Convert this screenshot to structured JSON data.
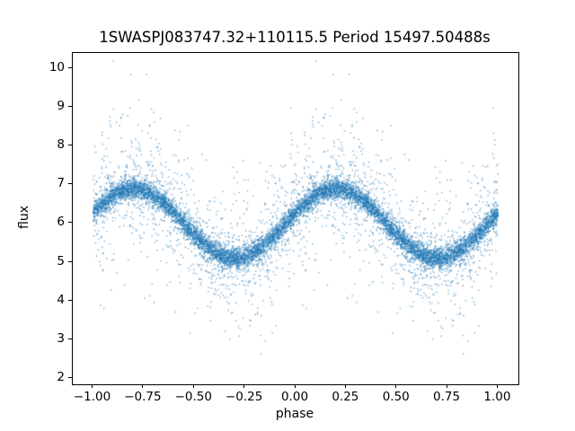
{
  "chart_data": {
    "type": "scatter",
    "title": "1SWASPJ083747.32+110115.5 Period 15497.50488s",
    "xlabel": "phase",
    "ylabel": "flux",
    "xlim": [
      -1.1,
      1.1
    ],
    "ylim": [
      1.85,
      10.4
    ],
    "x_ticks": [
      -1.0,
      -0.75,
      -0.5,
      -0.25,
      0.0,
      0.25,
      0.5,
      0.75,
      1.0
    ],
    "x_tick_labels": [
      "−1.00",
      "−0.75",
      "−0.50",
      "−0.25",
      "0.00",
      "0.25",
      "0.50",
      "0.75",
      "1.00"
    ],
    "y_ticks": [
      2,
      3,
      4,
      5,
      6,
      7,
      8,
      9,
      10
    ],
    "y_tick_labels": [
      "2",
      "3",
      "4",
      "5",
      "6",
      "7",
      "8",
      "9",
      "10"
    ],
    "grid": false,
    "legend": null,
    "marker_color": "#1f77b4",
    "marker_alpha": 0.55,
    "marker_size_px": 1.5,
    "background": "#ffffff",
    "spine_color": "#000000",
    "model": {
      "kind": "sinusoidal-phase-folded-light-curve",
      "mean_flux": 6.0,
      "amplitude": 0.9,
      "phase_of_max": 0.2,
      "phase_of_min": 0.7,
      "flux_at_max": 6.9,
      "flux_at_min": 5.1,
      "phase_range": [
        -1.0,
        1.0
      ],
      "duplicated_over_two_cycles": true,
      "n_points": 5500,
      "noise_components": [
        {
          "fraction": 0.75,
          "sigma": 0.13
        },
        {
          "fraction": 0.15,
          "sigma": 0.45
        },
        {
          "fraction": 0.1,
          "sigma": 1.15
        }
      ],
      "observed_flux_extremes": [
        1.9,
        10.1
      ],
      "seed": 42
    }
  }
}
